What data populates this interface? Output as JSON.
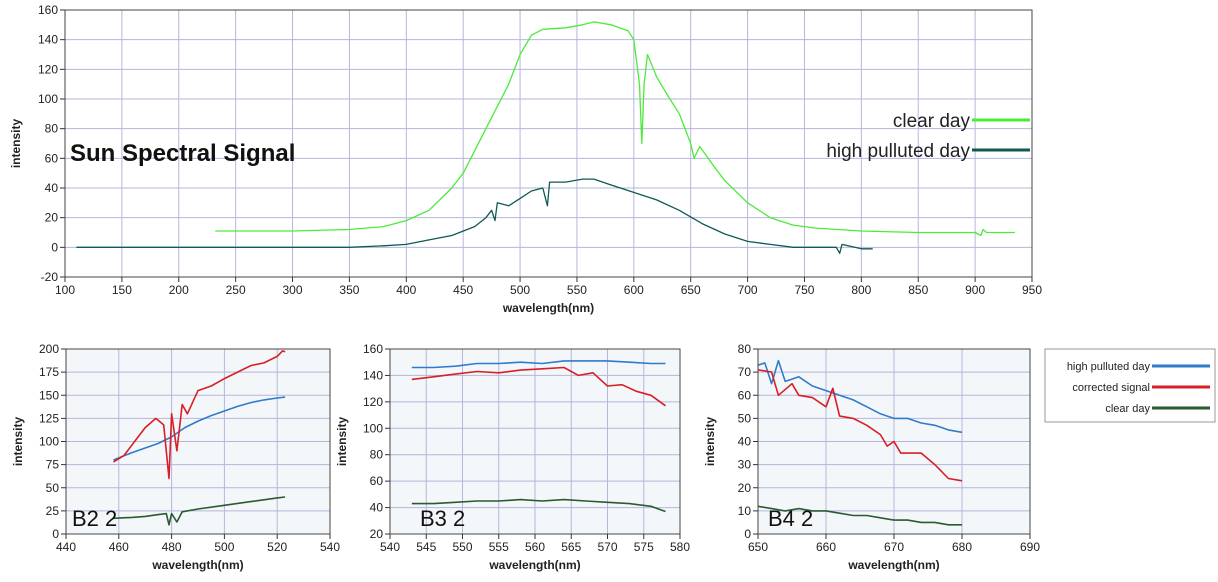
{
  "colors": {
    "clear_day": "#4cea3a",
    "high_pulluted_day": "#0f5a52",
    "corrected_signal": "#d81f26",
    "high_pulluted_day_blue": "#2f7bcc",
    "clear_day_dark": "#2a5a32",
    "grid": "#b4b6dc",
    "plot_bg_main": "#ffffff",
    "plot_bg_small": "#f4f7fa"
  },
  "chart_data": [
    {
      "id": "main",
      "type": "line",
      "title": "Sun Spectral Signal",
      "xlabel": "wavelength(nm)",
      "ylabel": "intensity",
      "xlim": [
        100,
        950
      ],
      "ylim": [
        -20,
        160
      ],
      "xticks": [
        100,
        150,
        200,
        250,
        300,
        350,
        400,
        450,
        500,
        550,
        600,
        650,
        700,
        750,
        800,
        850,
        900,
        950
      ],
      "yticks": [
        -20,
        0,
        20,
        40,
        60,
        80,
        100,
        120,
        140,
        160
      ],
      "grid": true,
      "legend_position": "right",
      "series": [
        {
          "name": "clear day",
          "color_key": "clear_day",
          "points": [
            [
              232,
              11
            ],
            [
              250,
              11
            ],
            [
              300,
              11
            ],
            [
              350,
              12
            ],
            [
              380,
              14
            ],
            [
              400,
              18
            ],
            [
              420,
              25
            ],
            [
              440,
              40
            ],
            [
              450,
              50
            ],
            [
              460,
              65
            ],
            [
              470,
              80
            ],
            [
              480,
              95
            ],
            [
              490,
              110
            ],
            [
              500,
              130
            ],
            [
              510,
              143
            ],
            [
              520,
              147
            ],
            [
              540,
              148
            ],
            [
              555,
              150
            ],
            [
              565,
              152
            ],
            [
              580,
              150
            ],
            [
              595,
              146
            ],
            [
              600,
              140
            ],
            [
              605,
              110
            ],
            [
              607,
              70
            ],
            [
              609,
              110
            ],
            [
              612,
              130
            ],
            [
              620,
              115
            ],
            [
              630,
              102
            ],
            [
              640,
              90
            ],
            [
              650,
              70
            ],
            [
              653,
              60
            ],
            [
              658,
              68
            ],
            [
              670,
              55
            ],
            [
              680,
              45
            ],
            [
              700,
              30
            ],
            [
              720,
              20
            ],
            [
              740,
              15
            ],
            [
              760,
              13
            ],
            [
              800,
              11
            ],
            [
              850,
              10
            ],
            [
              900,
              10
            ],
            [
              905,
              8
            ],
            [
              907,
              12
            ],
            [
              910,
              10
            ],
            [
              935,
              10
            ]
          ]
        },
        {
          "name": "high pulluted day",
          "color_key": "high_pulluted_day",
          "points": [
            [
              110,
              0
            ],
            [
              200,
              0
            ],
            [
              250,
              0
            ],
            [
              300,
              0
            ],
            [
              350,
              0
            ],
            [
              380,
              1
            ],
            [
              400,
              2
            ],
            [
              420,
              5
            ],
            [
              440,
              8
            ],
            [
              460,
              14
            ],
            [
              470,
              20
            ],
            [
              475,
              25
            ],
            [
              478,
              18
            ],
            [
              480,
              30
            ],
            [
              490,
              28
            ],
            [
              500,
              33
            ],
            [
              510,
              38
            ],
            [
              520,
              40
            ],
            [
              524,
              28
            ],
            [
              526,
              44
            ],
            [
              540,
              44
            ],
            [
              555,
              46
            ],
            [
              565,
              46
            ],
            [
              580,
              42
            ],
            [
              600,
              37
            ],
            [
              620,
              32
            ],
            [
              640,
              25
            ],
            [
              660,
              16
            ],
            [
              680,
              9
            ],
            [
              700,
              4
            ],
            [
              720,
              2
            ],
            [
              740,
              0
            ],
            [
              760,
              0
            ],
            [
              778,
              0
            ],
            [
              781,
              -4
            ],
            [
              783,
              2
            ],
            [
              800,
              -1
            ],
            [
              810,
              -1
            ]
          ]
        }
      ]
    },
    {
      "id": "b2",
      "type": "line",
      "title": "",
      "annotation": "B2 2",
      "xlabel": "wavelength(nm)",
      "ylabel": "intensity",
      "xlim": [
        440,
        540
      ],
      "ylim": [
        0,
        200
      ],
      "xticks": [
        440,
        460,
        480,
        500,
        520,
        540
      ],
      "yticks": [
        0,
        25,
        50,
        75,
        100,
        125,
        150,
        175,
        200
      ],
      "grid": true,
      "series": [
        {
          "name": "high pulluted day",
          "color_key": "high_pulluted_day_blue",
          "points": [
            [
              458,
              80
            ],
            [
              465,
              88
            ],
            [
              470,
              93
            ],
            [
              475,
              98
            ],
            [
              480,
              105
            ],
            [
              485,
              115
            ],
            [
              490,
              122
            ],
            [
              495,
              128
            ],
            [
              500,
              133
            ],
            [
              505,
              138
            ],
            [
              510,
              142
            ],
            [
              515,
              145
            ],
            [
              520,
              147
            ],
            [
              523,
              148
            ]
          ]
        },
        {
          "name": "corrected signal",
          "color_key": "corrected_signal",
          "points": [
            [
              458,
              78
            ],
            [
              462,
              85
            ],
            [
              466,
              100
            ],
            [
              470,
              115
            ],
            [
              474,
              125
            ],
            [
              477,
              118
            ],
            [
              479,
              60
            ],
            [
              480,
              130
            ],
            [
              482,
              90
            ],
            [
              484,
              140
            ],
            [
              486,
              130
            ],
            [
              490,
              155
            ],
            [
              495,
              160
            ],
            [
              500,
              168
            ],
            [
              505,
              175
            ],
            [
              510,
              182
            ],
            [
              515,
              185
            ],
            [
              520,
              192
            ],
            [
              522,
              198
            ],
            [
              523,
              197
            ]
          ]
        },
        {
          "name": "clear day",
          "color_key": "clear_day_dark",
          "points": [
            [
              458,
              17
            ],
            [
              465,
              18
            ],
            [
              470,
              19
            ],
            [
              475,
              21
            ],
            [
              478,
              22
            ],
            [
              479,
              10
            ],
            [
              480,
              22
            ],
            [
              482,
              13
            ],
            [
              484,
              24
            ],
            [
              490,
              27
            ],
            [
              500,
              31
            ],
            [
              510,
              35
            ],
            [
              520,
              39
            ],
            [
              523,
              40
            ]
          ]
        }
      ]
    },
    {
      "id": "b3",
      "type": "line",
      "title": "",
      "annotation": "B3 2",
      "xlabel": "wavelength(nm)",
      "ylabel": "intensity",
      "xlim": [
        540,
        580
      ],
      "ylim": [
        20,
        160
      ],
      "xticks": [
        540,
        545,
        550,
        555,
        560,
        565,
        570,
        575,
        580
      ],
      "yticks": [
        20,
        40,
        60,
        80,
        100,
        120,
        140,
        160
      ],
      "grid": true,
      "series": [
        {
          "name": "high pulluted day",
          "color_key": "high_pulluted_day_blue",
          "points": [
            [
              543,
              146
            ],
            [
              546,
              146
            ],
            [
              549,
              147
            ],
            [
              552,
              149
            ],
            [
              555,
              149
            ],
            [
              558,
              150
            ],
            [
              561,
              149
            ],
            [
              564,
              151
            ],
            [
              567,
              151
            ],
            [
              570,
              151
            ],
            [
              573,
              150
            ],
            [
              576,
              149
            ],
            [
              578,
              149
            ]
          ]
        },
        {
          "name": "corrected signal",
          "color_key": "corrected_signal",
          "points": [
            [
              543,
              137
            ],
            [
              546,
              139
            ],
            [
              549,
              141
            ],
            [
              552,
              143
            ],
            [
              555,
              142
            ],
            [
              558,
              144
            ],
            [
              561,
              145
            ],
            [
              564,
              146
            ],
            [
              566,
              140
            ],
            [
              568,
              142
            ],
            [
              570,
              132
            ],
            [
              572,
              133
            ],
            [
              574,
              128
            ],
            [
              576,
              125
            ],
            [
              578,
              117
            ]
          ]
        },
        {
          "name": "clear day",
          "color_key": "clear_day_dark",
          "points": [
            [
              543,
              43
            ],
            [
              546,
              43
            ],
            [
              549,
              44
            ],
            [
              552,
              45
            ],
            [
              555,
              45
            ],
            [
              558,
              46
            ],
            [
              561,
              45
            ],
            [
              564,
              46
            ],
            [
              567,
              45
            ],
            [
              570,
              44
            ],
            [
              573,
              43
            ],
            [
              576,
              41
            ],
            [
              578,
              37
            ]
          ]
        }
      ]
    },
    {
      "id": "b4",
      "type": "line",
      "title": "",
      "annotation": "B4 2",
      "xlabel": "wavelength(nm)",
      "ylabel": "intensity",
      "xlim": [
        650,
        690
      ],
      "ylim": [
        0,
        80
      ],
      "xticks": [
        650,
        660,
        670,
        680,
        690
      ],
      "yticks": [
        0,
        10,
        20,
        30,
        40,
        50,
        60,
        70,
        80
      ],
      "grid": true,
      "series": [
        {
          "name": "high pulluted day",
          "color_key": "high_pulluted_day_blue",
          "points": [
            [
              650,
              73
            ],
            [
              651,
              74
            ],
            [
              652,
              65
            ],
            [
              653,
              75
            ],
            [
              654,
              66
            ],
            [
              655,
              67
            ],
            [
              656,
              68
            ],
            [
              658,
              64
            ],
            [
              660,
              62
            ],
            [
              662,
              60
            ],
            [
              664,
              58
            ],
            [
              666,
              55
            ],
            [
              668,
              52
            ],
            [
              670,
              50
            ],
            [
              672,
              50
            ],
            [
              674,
              48
            ],
            [
              676,
              47
            ],
            [
              678,
              45
            ],
            [
              680,
              44
            ]
          ]
        },
        {
          "name": "corrected signal",
          "color_key": "corrected_signal",
          "points": [
            [
              650,
              71
            ],
            [
              652,
              70
            ],
            [
              653,
              60
            ],
            [
              655,
              65
            ],
            [
              656,
              60
            ],
            [
              658,
              59
            ],
            [
              660,
              55
            ],
            [
              661,
              63
            ],
            [
              662,
              51
            ],
            [
              664,
              50
            ],
            [
              666,
              47
            ],
            [
              668,
              43
            ],
            [
              669,
              38
            ],
            [
              670,
              40
            ],
            [
              671,
              35
            ],
            [
              674,
              35
            ],
            [
              676,
              30
            ],
            [
              678,
              24
            ],
            [
              680,
              23
            ]
          ]
        },
        {
          "name": "clear day",
          "color_key": "clear_day_dark",
          "points": [
            [
              650,
              12
            ],
            [
              652,
              11
            ],
            [
              654,
              10
            ],
            [
              656,
              11
            ],
            [
              658,
              10
            ],
            [
              660,
              10
            ],
            [
              662,
              9
            ],
            [
              664,
              8
            ],
            [
              666,
              8
            ],
            [
              668,
              7
            ],
            [
              670,
              6
            ],
            [
              672,
              6
            ],
            [
              674,
              5
            ],
            [
              676,
              5
            ],
            [
              678,
              4
            ],
            [
              680,
              4
            ]
          ]
        }
      ]
    }
  ],
  "main_legend": [
    {
      "label": "clear day",
      "color_key": "clear_day"
    },
    {
      "label": "high pulluted day",
      "color_key": "high_pulluted_day"
    }
  ],
  "bottom_legend": [
    {
      "label": "high pulluted day",
      "color_key": "high_pulluted_day_blue"
    },
    {
      "label": "corrected signal",
      "color_key": "corrected_signal"
    },
    {
      "label": "clear day",
      "color_key": "clear_day_dark"
    }
  ]
}
